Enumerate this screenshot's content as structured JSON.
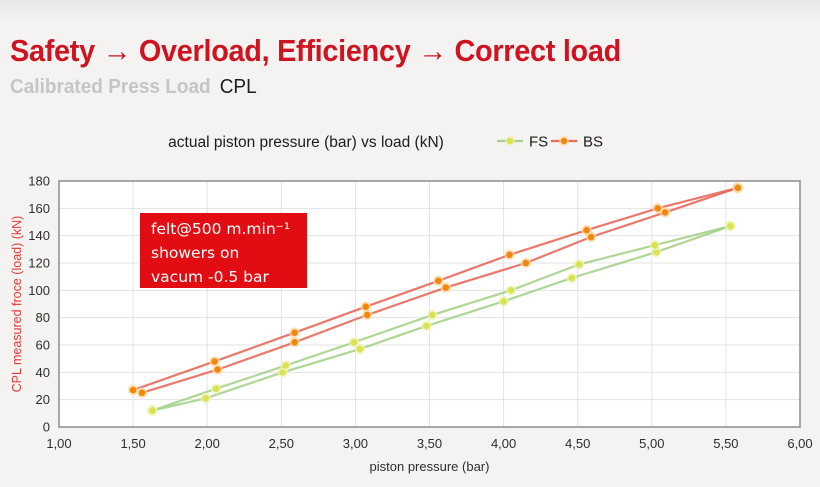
{
  "header": {
    "title": "Safety → Overload, Efficiency → Correct load",
    "subtitle_gray": "Calibrated Press Load",
    "subtitle_cpl": "CPL",
    "title_color": "#cd1420"
  },
  "chart_data": {
    "type": "line",
    "title": "actual piston pressure (bar) vs load (kN)",
    "xlabel": "piston pressure (bar)",
    "ylabel": "CPL measured froce (load) (kN)",
    "xlim": [
      1.0,
      6.0
    ],
    "ylim": [
      0,
      180
    ],
    "grid": true,
    "legend_position": "top-right",
    "xticks": [
      {
        "v": 1.0,
        "label": "1,00"
      },
      {
        "v": 1.5,
        "label": "1,50"
      },
      {
        "v": 2.0,
        "label": "2,00"
      },
      {
        "v": 2.5,
        "label": "2,50"
      },
      {
        "v": 3.0,
        "label": "3,00"
      },
      {
        "v": 3.5,
        "label": "3,50"
      },
      {
        "v": 4.0,
        "label": "4,00"
      },
      {
        "v": 4.5,
        "label": "4,50"
      },
      {
        "v": 5.0,
        "label": "5,00"
      },
      {
        "v": 5.5,
        "label": "5,50"
      },
      {
        "v": 6.0,
        "label": "6,00"
      }
    ],
    "yticks": [
      0,
      20,
      40,
      60,
      80,
      100,
      120,
      140,
      160,
      180
    ],
    "legend": [
      {
        "name": "FS",
        "line_color": "#a6d289",
        "marker_color": "#d9e24f",
        "marker_halo": "#eef3b4"
      },
      {
        "name": "BS",
        "line_color": "#e8695b",
        "marker_color": "#f1870e",
        "marker_halo": "#fbd9a0"
      }
    ],
    "series": [
      {
        "name": "FS",
        "branch": "up",
        "points": [
          [
            1.63,
            12
          ],
          [
            1.99,
            21
          ],
          [
            2.51,
            40
          ],
          [
            3.03,
            57
          ],
          [
            3.48,
            74
          ],
          [
            4.0,
            92
          ],
          [
            4.46,
            109
          ],
          [
            5.03,
            128
          ],
          [
            5.53,
            147
          ]
        ]
      },
      {
        "name": "FS",
        "branch": "down",
        "points": [
          [
            1.63,
            12
          ],
          [
            2.06,
            28
          ],
          [
            2.53,
            45
          ],
          [
            2.99,
            62
          ],
          [
            3.52,
            82
          ],
          [
            4.05,
            100
          ],
          [
            4.51,
            119
          ],
          [
            5.02,
            133
          ],
          [
            5.53,
            147
          ]
        ]
      },
      {
        "name": "BS",
        "branch": "up",
        "points": [
          [
            1.56,
            25
          ],
          [
            2.07,
            42
          ],
          [
            2.59,
            62
          ],
          [
            3.08,
            82
          ],
          [
            3.61,
            102
          ],
          [
            4.15,
            120
          ],
          [
            4.59,
            139
          ],
          [
            5.09,
            157
          ],
          [
            5.58,
            175
          ]
        ]
      },
      {
        "name": "BS",
        "branch": "down",
        "points": [
          [
            1.5,
            27
          ],
          [
            2.05,
            48
          ],
          [
            2.59,
            69
          ],
          [
            3.07,
            88
          ],
          [
            3.56,
            107
          ],
          [
            4.04,
            126
          ],
          [
            4.56,
            144
          ],
          [
            5.04,
            160
          ],
          [
            5.58,
            175
          ]
        ]
      }
    ],
    "annotation": {
      "lines": [
        "felt@500 m.min⁻¹",
        "showers on",
        "vacum -0.5 bar"
      ],
      "bg": "#e20d13",
      "color": "#ffffff"
    },
    "colors": {
      "axis_label": "#2e2e2e",
      "chart_title": "#1c1c1c",
      "ylabel": "#e43b35",
      "grid": "#e3e3e3",
      "frame": "#8c8c8c",
      "plot_bg": "#ffffff",
      "page_bg": "#f4f3f1"
    }
  }
}
